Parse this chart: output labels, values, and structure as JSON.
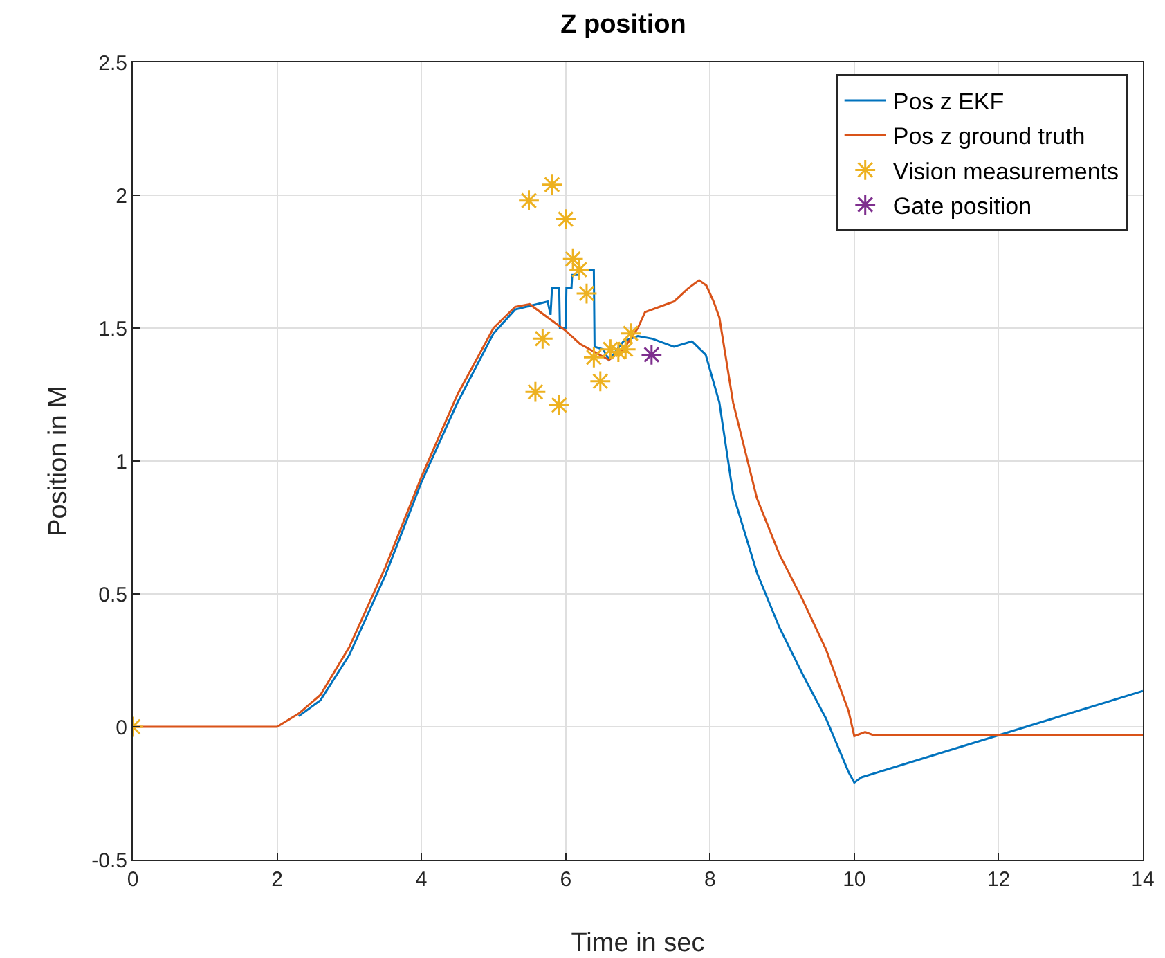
{
  "chart_data": {
    "type": "line",
    "title": "Z position",
    "xlabel": "Time in sec",
    "ylabel": "Position in M",
    "xlim": [
      0,
      14
    ],
    "xticks": [
      0,
      2,
      4,
      6,
      8,
      10,
      12,
      14
    ],
    "ylim": [
      -0.5,
      2.5
    ],
    "yticks": [
      -0.5,
      0,
      0.5,
      1,
      1.5,
      2,
      2.5
    ],
    "grid": true,
    "legend": "top right",
    "marker": "none",
    "series": [
      {
        "name": "Pos z EKF",
        "color": "#0072bd",
        "x": [
          2.3,
          2.6,
          3,
          3.5,
          4,
          4.5,
          5,
          5.3,
          5.6,
          5.75,
          5.79,
          5.81,
          5.91,
          5.92,
          6.0,
          6.01,
          6.08,
          6.09,
          6.18,
          6.19,
          6.39,
          6.4,
          6.52,
          6.6,
          6.8,
          7.0,
          7.2,
          7.4,
          7.5,
          7.75,
          7.94,
          8.13,
          8.32,
          8.65,
          8.96,
          9.28,
          9.61,
          9.92,
          10.0,
          10.1,
          14
        ],
        "values": [
          0.04,
          0.1,
          0.27,
          0.57,
          0.92,
          1.22,
          1.48,
          1.57,
          1.59,
          1.6,
          1.55,
          1.65,
          1.65,
          1.5,
          1.5,
          1.65,
          1.65,
          1.7,
          1.7,
          1.72,
          1.72,
          1.43,
          1.42,
          1.38,
          1.45,
          1.47,
          1.46,
          1.44,
          1.43,
          1.45,
          1.4,
          1.22,
          0.875,
          0.58,
          0.375,
          0.2,
          0.03,
          -0.17,
          -0.21,
          -0.19,
          0.135
        ]
      },
      {
        "name": "Pos z ground truth",
        "color": "#d95319",
        "x": [
          0,
          2,
          2.3,
          2.6,
          3,
          3.5,
          4,
          4.5,
          5,
          5.3,
          5.5,
          5.8,
          6,
          6.2,
          6.4,
          6.6,
          6.8,
          7.0,
          7.1,
          7.3,
          7.5,
          7.7,
          7.85,
          7.95,
          8.05,
          8.13,
          8.32,
          8.65,
          8.96,
          9.28,
          9.61,
          9.92,
          10.0,
          10.05,
          10.15,
          10.25,
          14
        ],
        "values": [
          0,
          0,
          0.05,
          0.12,
          0.3,
          0.6,
          0.94,
          1.25,
          1.5,
          1.58,
          1.59,
          1.53,
          1.49,
          1.44,
          1.41,
          1.38,
          1.42,
          1.5,
          1.56,
          1.58,
          1.6,
          1.65,
          1.68,
          1.66,
          1.6,
          1.54,
          1.22,
          0.86,
          0.65,
          0.48,
          0.29,
          0.06,
          -0.035,
          -0.03,
          -0.02,
          -0.03,
          -0.03
        ]
      },
      {
        "name": "Vision measurements",
        "color": "#edb120",
        "type": "scatter",
        "marker": "cross",
        "x": [
          0,
          5.49,
          5.81,
          6.0,
          6.1,
          6.19,
          6.29,
          5.68,
          5.58,
          5.91,
          6.39,
          6.48,
          6.62,
          6.73,
          6.83,
          6.9
        ],
        "values": [
          0,
          1.98,
          2.04,
          1.91,
          1.76,
          1.72,
          1.63,
          1.46,
          1.26,
          1.21,
          1.39,
          1.3,
          1.42,
          1.41,
          1.42,
          1.48
        ]
      },
      {
        "name": "Gate position",
        "color": "#7e2f8e",
        "type": "scatter",
        "marker": "cross",
        "x": [
          7.19
        ],
        "values": [
          1.4
        ]
      }
    ]
  }
}
